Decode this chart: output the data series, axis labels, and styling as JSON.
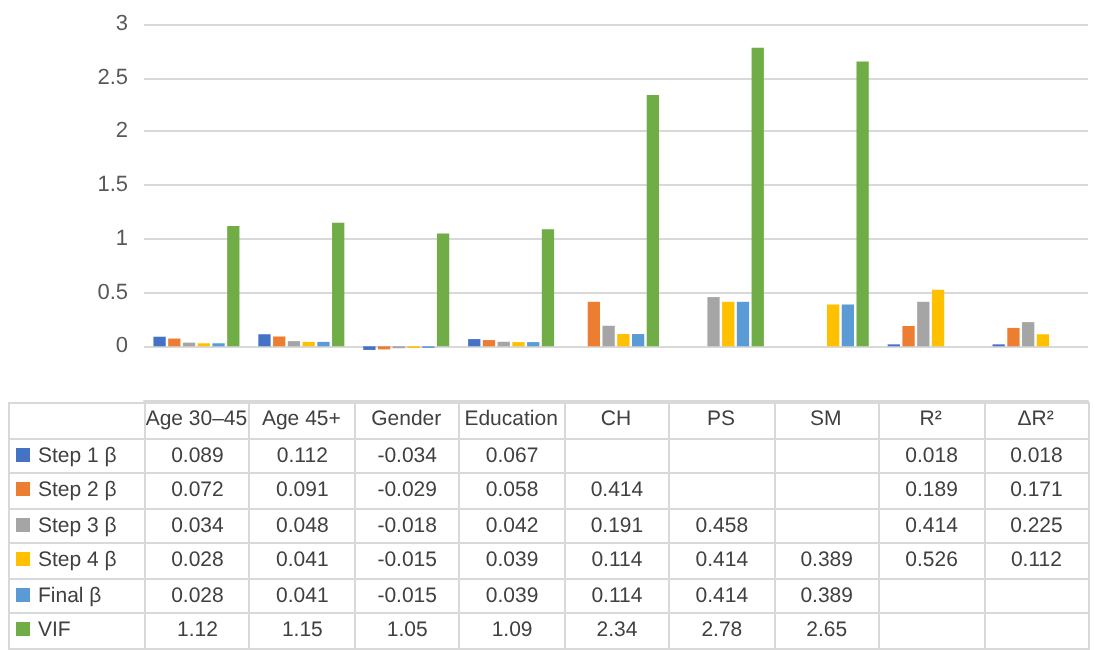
{
  "chart_data": {
    "type": "bar",
    "categories": [
      "Age 30–45",
      "Age 45+",
      "Gender",
      "Education",
      "CH",
      "PS",
      "SM",
      "R²",
      "ΔR²"
    ],
    "series": [
      {
        "name": "Step 1 β",
        "color": "#4472c4",
        "values": [
          0.089,
          0.112,
          -0.034,
          0.067,
          null,
          null,
          null,
          0.018,
          0.018
        ]
      },
      {
        "name": "Step 2 β",
        "color": "#ed7d31",
        "values": [
          0.072,
          0.091,
          -0.029,
          0.058,
          0.414,
          null,
          null,
          0.189,
          0.171
        ]
      },
      {
        "name": "Step 3 β",
        "color": "#a5a5a5",
        "values": [
          0.034,
          0.048,
          -0.018,
          0.042,
          0.191,
          0.458,
          null,
          0.414,
          0.225
        ]
      },
      {
        "name": "Step 4 β",
        "color": "#ffc000",
        "values": [
          0.028,
          0.041,
          -0.015,
          0.039,
          0.114,
          0.414,
          0.389,
          0.526,
          0.112
        ]
      },
      {
        "name": "Final β",
        "color": "#5b9bd5",
        "values": [
          0.028,
          0.041,
          -0.015,
          0.039,
          0.114,
          0.414,
          0.389,
          null,
          null
        ]
      },
      {
        "name": "VIF",
        "color": "#70ad47",
        "values": [
          1.12,
          1.15,
          1.05,
          1.09,
          2.34,
          2.78,
          2.65,
          null,
          null
        ]
      }
    ],
    "ylim": [
      -0.5,
      3
    ],
    "yticks": [
      {
        "value": -0.5,
        "label": null
      },
      0,
      0.5,
      1,
      1.5,
      2,
      2.5,
      3
    ],
    "grid": "y",
    "legend": "bottom",
    "data_labels": true
  }
}
